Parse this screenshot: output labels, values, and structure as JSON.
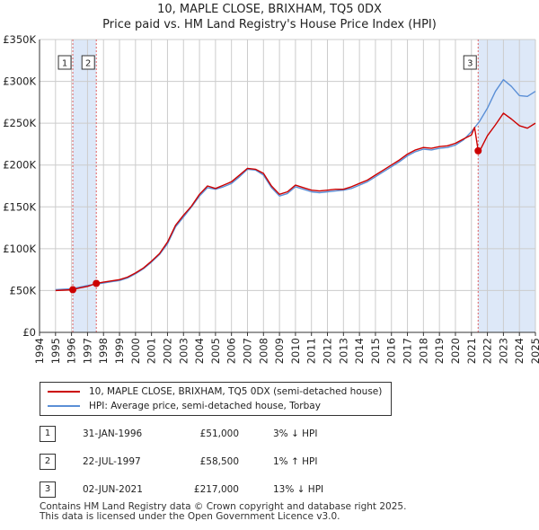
{
  "chart_data": {
    "type": "line",
    "title": "10, MAPLE CLOSE, BRIXHAM, TQ5 0DX",
    "subtitle": "Price paid vs. HM Land Registry's House Price Index (HPI)",
    "xlabel": "",
    "ylabel": "",
    "xlim": [
      1994,
      2025
    ],
    "ylim": [
      0,
      350000
    ],
    "x_ticks": [
      "1994",
      "1995",
      "1996",
      "1997",
      "1998",
      "1999",
      "2000",
      "2001",
      "2002",
      "2003",
      "2004",
      "2005",
      "2006",
      "2007",
      "2008",
      "2009",
      "2010",
      "2011",
      "2012",
      "2013",
      "2014",
      "2015",
      "2016",
      "2017",
      "2018",
      "2019",
      "2020",
      "2021",
      "2022",
      "2023",
      "2024",
      "2025"
    ],
    "y_ticks": [
      {
        "value": 0,
        "label": "£0"
      },
      {
        "value": 50000,
        "label": "£50K"
      },
      {
        "value": 100000,
        "label": "£100K"
      },
      {
        "value": 150000,
        "label": "£150K"
      },
      {
        "value": 200000,
        "label": "£200K"
      },
      {
        "value": 250000,
        "label": "£250K"
      },
      {
        "value": 300000,
        "label": "£300K"
      },
      {
        "value": 350000,
        "label": "£350K"
      }
    ],
    "grid": true,
    "colors": {
      "property": "#cc0000",
      "hpi": "#5b8fd6",
      "shade": "#dde8f8",
      "marker_line": "#e06060",
      "grid": "#cccccc"
    },
    "series": [
      {
        "name": "10, MAPLE CLOSE, BRIXHAM, TQ5 0DX (semi-detached house)",
        "x": [
          1995.0,
          1995.5,
          1996.08,
          1996.5,
          1997.0,
          1997.55,
          1998.0,
          1998.5,
          1999.0,
          1999.5,
          2000.0,
          2000.5,
          2001.0,
          2001.5,
          2002.0,
          2002.5,
          2003.0,
          2003.5,
          2004.0,
          2004.5,
          2005.0,
          2005.5,
          2006.0,
          2006.5,
          2007.0,
          2007.5,
          2008.0,
          2008.5,
          2009.0,
          2009.5,
          2010.0,
          2010.5,
          2011.0,
          2011.5,
          2012.0,
          2012.5,
          2013.0,
          2013.5,
          2014.0,
          2014.5,
          2015.0,
          2015.5,
          2016.0,
          2016.5,
          2017.0,
          2017.5,
          2018.0,
          2018.5,
          2019.0,
          2019.5,
          2020.0,
          2020.5,
          2021.0,
          2021.2,
          2021.42,
          2021.6,
          2022.0,
          2022.5,
          2023.0,
          2023.5,
          2024.0,
          2024.5,
          2025.0
        ],
        "values": [
          50000,
          50500,
          51000,
          53000,
          55000,
          58500,
          60000,
          61500,
          63000,
          66000,
          71000,
          77000,
          85000,
          94000,
          108000,
          128000,
          140000,
          151000,
          165000,
          175000,
          172000,
          176000,
          180000,
          188000,
          196000,
          195000,
          190000,
          175000,
          165000,
          168000,
          176000,
          173000,
          170000,
          169000,
          170000,
          171000,
          171000,
          174000,
          178000,
          182000,
          188000,
          194000,
          200000,
          206000,
          213000,
          218000,
          221000,
          220000,
          222000,
          223000,
          226000,
          231000,
          236000,
          245000,
          217000,
          220000,
          235000,
          248000,
          262000,
          255000,
          247000,
          244000,
          250000
        ]
      },
      {
        "name": "HPI: Average price, semi-detached house, Torbay",
        "x": [
          1995.0,
          1995.5,
          1996.0,
          1996.5,
          1997.0,
          1997.5,
          1998.0,
          1998.5,
          1999.0,
          1999.5,
          2000.0,
          2000.5,
          2001.0,
          2001.5,
          2002.0,
          2002.5,
          2003.0,
          2003.5,
          2004.0,
          2004.5,
          2005.0,
          2005.5,
          2006.0,
          2006.5,
          2007.0,
          2007.5,
          2008.0,
          2008.5,
          2009.0,
          2009.5,
          2010.0,
          2010.5,
          2011.0,
          2011.5,
          2012.0,
          2012.5,
          2013.0,
          2013.5,
          2014.0,
          2014.5,
          2015.0,
          2015.5,
          2016.0,
          2016.5,
          2017.0,
          2017.5,
          2018.0,
          2018.5,
          2019.0,
          2019.5,
          2020.0,
          2020.5,
          2021.0,
          2021.5,
          2022.0,
          2022.5,
          2023.0,
          2023.5,
          2024.0,
          2024.5,
          2025.0
        ],
        "values": [
          51000,
          51500,
          52000,
          54000,
          56000,
          57500,
          59000,
          60500,
          62000,
          65000,
          70000,
          76000,
          84000,
          93000,
          106000,
          126000,
          138000,
          150000,
          163000,
          173000,
          171000,
          174000,
          178000,
          186000,
          195000,
          194000,
          188000,
          173000,
          163000,
          166000,
          174000,
          171000,
          168000,
          167000,
          168000,
          169000,
          170000,
          172000,
          176000,
          180000,
          186000,
          192000,
          198000,
          204000,
          211000,
          216000,
          219000,
          218000,
          220000,
          221000,
          224000,
          230000,
          240000,
          252000,
          268000,
          288000,
          302000,
          294000,
          283000,
          282000,
          288000
        ]
      }
    ],
    "sales": [
      {
        "label": "1",
        "x": 1996.08,
        "price": 51000
      },
      {
        "label": "2",
        "x": 1997.55,
        "price": 58500
      },
      {
        "label": "3",
        "x": 2021.42,
        "price": 217000
      }
    ]
  },
  "legend": {
    "property": "10, MAPLE CLOSE, BRIXHAM, TQ5 0DX (semi-detached house)",
    "hpi": "HPI: Average price, semi-detached house, Torbay"
  },
  "sales_table": [
    {
      "num": "1",
      "date": "31-JAN-1996",
      "price": "£51,000",
      "hpi": "3% ↓ HPI"
    },
    {
      "num": "2",
      "date": "22-JUL-1997",
      "price": "£58,500",
      "hpi": "1% ↑ HPI"
    },
    {
      "num": "3",
      "date": "02-JUN-2021",
      "price": "£217,000",
      "hpi": "13% ↓ HPI"
    }
  ],
  "footer": {
    "line1": "Contains HM Land Registry data © Crown copyright and database right 2025.",
    "line2": "This data is licensed under the Open Government Licence v3.0."
  }
}
